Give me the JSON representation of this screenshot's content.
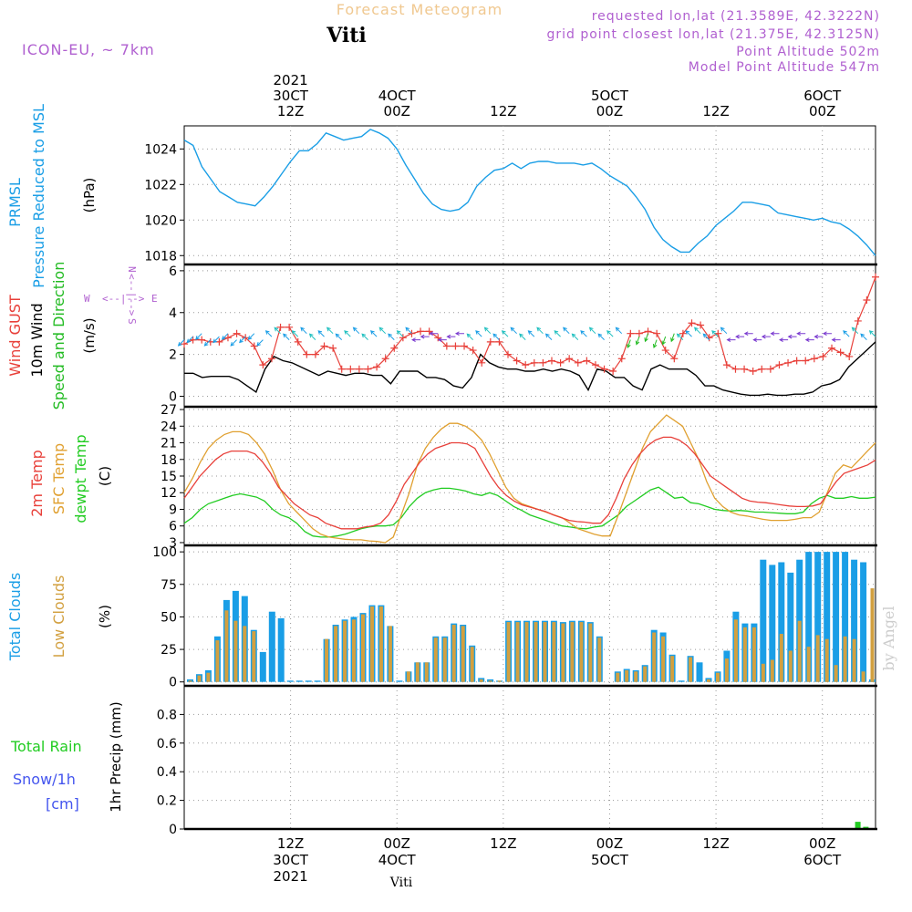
{
  "header": {
    "title": "Forecast Meteogram",
    "location": "Viti",
    "model": "ICON-EU, ~ 7km",
    "info_lines": [
      "requested lon,lat (21.3589E, 42.3222N)",
      "grid point closest lon,lat (21.375E, 42.3125N)",
      "Point Altitude 502m",
      "Model Point Altitude 547m"
    ],
    "footer_location": "Viti",
    "watermark": "by Angel"
  },
  "colors": {
    "pressure": "#1a9ee6",
    "gust": "#e8403a",
    "wind": "#000000",
    "wind_arrow": "#22bb22",
    "compass": "#b060d0",
    "t2m": "#e8403a",
    "sfc": "#e0a030",
    "dew": "#22cc22",
    "total_clouds": "#1a9ee6",
    "low_clouds": "#d2a040",
    "rain": "#22cc22",
    "snow": "#4455ee",
    "title": "#f0c890",
    "info": "#b060d0",
    "grid": "#999999"
  },
  "time_axis": {
    "top_labels": [
      {
        "t": 12,
        "lines": [
          "2021",
          "30CT",
          "12Z"
        ]
      },
      {
        "t": 24,
        "lines": [
          "4OCT",
          "00Z"
        ]
      },
      {
        "t": 36,
        "lines": [
          "12Z"
        ]
      },
      {
        "t": 48,
        "lines": [
          "5OCT",
          "00Z"
        ]
      },
      {
        "t": 60,
        "lines": [
          "12Z"
        ]
      },
      {
        "t": 72,
        "lines": [
          "6OCT",
          "00Z"
        ]
      }
    ],
    "bottom_labels": [
      {
        "t": 12,
        "lines": [
          "12Z",
          "30CT",
          "2021"
        ]
      },
      {
        "t": 24,
        "lines": [
          "00Z",
          "4OCT"
        ]
      },
      {
        "t": 36,
        "lines": [
          "12Z"
        ]
      },
      {
        "t": 48,
        "lines": [
          "00Z",
          "5OCT"
        ]
      },
      {
        "t": 60,
        "lines": [
          "12Z"
        ]
      },
      {
        "t": 72,
        "lines": [
          "00Z",
          "6OCT"
        ]
      }
    ]
  },
  "chart_data": [
    {
      "type": "line",
      "panel": "pressure",
      "title": "PRMSL Pressure Reduced to MSL",
      "ylabel": "(hPa)",
      "ylim": [
        1017.5,
        1025.3
      ],
      "yticks": [
        1018,
        1020,
        1022,
        1024
      ],
      "series": [
        {
          "name": "PRMSL",
          "values": [
            1024.5,
            1024.2,
            1023,
            1022.3,
            1021.6,
            1021.3,
            1021,
            1020.9,
            1020.8,
            1021.3,
            1021.9,
            1022.6,
            1023.3,
            1023.9,
            1023.9,
            1024.3,
            1024.9,
            1024.7,
            1024.5,
            1024.6,
            1024.7,
            1025.1,
            1024.9,
            1024.6,
            1024,
            1023.1,
            1022.3,
            1021.5,
            1020.9,
            1020.6,
            1020.5,
            1020.6,
            1021,
            1021.9,
            1022.4,
            1022.8,
            1022.9,
            1023.2,
            1022.9,
            1023.2,
            1023.3,
            1023.3,
            1023.2,
            1023.2,
            1023.2,
            1023.1,
            1023.2,
            1022.9,
            1022.5,
            1022.2,
            1021.9,
            1021.3,
            1020.6,
            1019.6,
            1018.9,
            1018.5,
            1018.2,
            1018.2,
            1018.7,
            1019.1,
            1019.7,
            1020.1,
            1020.5,
            1021,
            1021,
            1020.9,
            1020.8,
            1020.4,
            1020.3,
            1020.2,
            1020.1,
            1020,
            1020.1,
            1019.9,
            1019.8,
            1019.5,
            1019.1,
            1018.6,
            1018
          ]
        }
      ]
    },
    {
      "type": "line",
      "panel": "wind",
      "title": "Wind GUST / 10m Wind Speed and Direction",
      "ylabel": "(m/s)",
      "ylim": [
        -0.5,
        6.3
      ],
      "yticks": [
        0,
        2,
        4,
        6
      ],
      "compass": {
        "w": "W",
        "e": "E",
        "n": "N",
        "s": "S"
      },
      "series": [
        {
          "name": "Wind GUST",
          "values": [
            2.5,
            2.7,
            2.7,
            2.6,
            2.6,
            2.8,
            3.0,
            2.8,
            2.4,
            1.5,
            1.8,
            3.3,
            3.3,
            2.6,
            2.0,
            2.0,
            2.4,
            2.3,
            1.3,
            1.3,
            1.3,
            1.3,
            1.4,
            1.8,
            2.3,
            2.8,
            3.0,
            3.1,
            3.1,
            2.8,
            2.4,
            2.4,
            2.4,
            2.2,
            1.6,
            2.6,
            2.6,
            2.0,
            1.7,
            1.5,
            1.6,
            1.6,
            1.7,
            1.6,
            1.8,
            1.6,
            1.7,
            1.5,
            1.3,
            1.2,
            1.8,
            3.0,
            3.0,
            3.1,
            3.0,
            2.2,
            1.8,
            3.0,
            3.5,
            3.4,
            2.8,
            3.0,
            1.5,
            1.3,
            1.3,
            1.2,
            1.3,
            1.3,
            1.5,
            1.6,
            1.7,
            1.7,
            1.8,
            1.9,
            2.3,
            2.1,
            1.9,
            3.6,
            4.6,
            5.7
          ]
        },
        {
          "name": "10m Wind",
          "values": [
            1.1,
            1.1,
            0.9,
            0.95,
            0.95,
            0.95,
            0.8,
            0.5,
            0.2,
            1.3,
            1.9,
            1.7,
            1.6,
            1.4,
            1.2,
            1.0,
            1.2,
            1.1,
            1.0,
            1.1,
            1.1,
            1.0,
            1.0,
            0.6,
            1.2,
            1.2,
            1.2,
            0.9,
            0.9,
            0.8,
            0.5,
            0.4,
            0.9,
            2.0,
            1.6,
            1.4,
            1.3,
            1.3,
            1.2,
            1.2,
            1.3,
            1.2,
            1.3,
            1.2,
            1.0,
            0.3,
            1.3,
            1.2,
            0.9,
            0.9,
            0.5,
            0.3,
            1.3,
            1.5,
            1.3,
            1.3,
            1.3,
            1.0,
            0.5,
            0.5,
            0.3,
            0.2,
            0.1,
            0.05,
            0.05,
            0.1,
            0.05,
            0.05,
            0.1,
            0.1,
            0.2,
            0.5,
            0.6,
            0.8,
            1.4,
            1.8,
            2.2,
            2.6
          ]
        }
      ],
      "direction_deg": [
        225,
        225,
        225,
        225,
        225,
        225,
        225,
        225,
        225,
        225,
        315,
        315,
        315,
        315,
        315,
        315,
        315,
        315,
        315,
        315,
        315,
        315,
        315,
        315,
        315,
        315,
        315,
        270,
        270,
        270,
        270,
        270,
        270,
        315,
        315,
        315,
        315,
        315,
        315,
        315,
        315,
        315,
        315,
        315,
        315,
        315,
        315,
        315,
        315,
        315,
        315,
        200,
        200,
        200,
        200,
        200,
        200,
        315,
        315,
        315,
        315,
        315,
        315,
        270,
        270,
        270,
        270,
        270,
        270,
        270,
        270,
        270,
        270,
        270,
        270,
        270,
        315,
        315,
        315,
        315
      ]
    },
    {
      "type": "line",
      "panel": "temperature",
      "title": "2m Temp / SFC Temp / dewpt Temp",
      "ylabel": "(C)",
      "ylim": [
        2.5,
        27.5
      ],
      "yticks": [
        3,
        6,
        9,
        12,
        15,
        18,
        21,
        24,
        27
      ],
      "series": [
        {
          "name": "2m Temp",
          "values": [
            11,
            13,
            15,
            16.5,
            18,
            19,
            19.5,
            19.5,
            19.5,
            19,
            17.5,
            15.5,
            13,
            11.5,
            10,
            9,
            8,
            7.5,
            6.5,
            6,
            5.5,
            5.5,
            5.5,
            5.8,
            6,
            6.5,
            8,
            10.5,
            13.5,
            15.5,
            17.5,
            19,
            20,
            20.5,
            21,
            21,
            20.8,
            20,
            17.5,
            15,
            13,
            11.5,
            10.5,
            9.8,
            9.4,
            9,
            8.6,
            8,
            7.5,
            7,
            6.8,
            6.7,
            6.5,
            6.5,
            8,
            11,
            14.5,
            17,
            19,
            20.5,
            21.5,
            22,
            22,
            21.5,
            20.5,
            19,
            17,
            15,
            14,
            13,
            12,
            11,
            10.5,
            10.3,
            10.2,
            10,
            9.8,
            9.6,
            9.5,
            9.5,
            9.6,
            10,
            12,
            14,
            15.5,
            16,
            16.5,
            17,
            17.9
          ]
        },
        {
          "name": "SFC Temp",
          "values": [
            12,
            14.5,
            17.5,
            20,
            21.5,
            22.5,
            23,
            23,
            22.5,
            21,
            19,
            16,
            12.5,
            10,
            8.5,
            7,
            5.5,
            4.5,
            4,
            3.8,
            3.6,
            3.5,
            3.5,
            3.3,
            3.2,
            3.0,
            4,
            8,
            12,
            17,
            20,
            22,
            23.5,
            24.5,
            24.5,
            24,
            23,
            21.5,
            19,
            16,
            13,
            11,
            10,
            9.5,
            9,
            8.5,
            8,
            7.5,
            6.5,
            5.5,
            5,
            4.5,
            4.2,
            4.2,
            8,
            12,
            16,
            20,
            23,
            24.5,
            26,
            25,
            24,
            21,
            18,
            14,
            11,
            9.5,
            8.5,
            8,
            7.8,
            7.5,
            7.2,
            7,
            7,
            7,
            7.2,
            7.5,
            7.5,
            8.5,
            12,
            15.5,
            17,
            16.5,
            18,
            19.5,
            21
          ]
        },
        {
          "name": "dewpt Temp",
          "values": [
            6.5,
            7.5,
            9,
            10,
            10.5,
            11,
            11.5,
            11.8,
            11.5,
            11.2,
            10.5,
            9,
            8,
            7.5,
            6.5,
            5,
            4.2,
            4,
            4,
            4.2,
            4.5,
            5,
            5.5,
            5.8,
            6,
            6,
            6.2,
            7.5,
            9.5,
            11,
            12,
            12.5,
            12.8,
            12.8,
            12.6,
            12.3,
            11.8,
            11.5,
            12,
            11.5,
            10.5,
            9.5,
            8.8,
            8,
            7.5,
            7,
            6.5,
            6,
            5.8,
            5.6,
            5.5,
            5.8,
            6,
            7,
            8,
            9.5,
            10.5,
            11.5,
            12.5,
            13,
            12,
            11,
            11.2,
            10.2,
            10,
            9.5,
            9,
            8.8,
            8.7,
            8.8,
            8.7,
            8.5,
            8.5,
            8.4,
            8.3,
            8.2,
            8.2,
            8.5,
            10,
            11,
            11.5,
            11,
            11,
            11.3,
            11,
            11,
            11.2
          ]
        }
      ]
    },
    {
      "type": "bar",
      "panel": "clouds",
      "title": "Total Clouds / Low Clouds",
      "ylabel": "(%)",
      "ylim": [
        -3,
        105
      ],
      "yticks": [
        0,
        25,
        50,
        75,
        100
      ],
      "series": [
        {
          "name": "Total Clouds",
          "values": [
            2,
            6,
            9,
            35,
            63,
            70,
            66,
            40,
            23,
            54,
            49,
            1,
            1,
            1,
            1,
            33,
            44,
            48,
            50,
            53,
            59,
            59,
            43,
            1,
            8,
            15,
            15,
            35,
            35,
            45,
            44,
            28,
            3,
            2,
            1,
            47,
            47,
            47,
            47,
            47,
            47,
            46,
            47,
            47,
            46,
            35,
            0,
            8,
            10,
            9,
            13,
            40,
            38,
            21,
            1,
            20,
            15,
            3,
            8,
            24,
            54,
            45,
            45,
            94,
            90,
            92,
            84,
            94,
            100,
            100,
            100,
            100,
            100,
            94,
            92,
            2
          ]
        },
        {
          "name": "Low Clouds",
          "values": [
            1,
            5,
            7,
            32,
            55,
            47,
            43,
            39,
            0,
            0,
            0,
            0,
            0,
            0,
            0,
            33,
            43,
            47,
            48,
            52,
            58,
            58,
            43,
            0,
            8,
            15,
            15,
            34,
            34,
            44,
            43,
            27,
            2,
            1,
            1,
            46,
            46,
            46,
            46,
            46,
            46,
            45,
            46,
            46,
            45,
            34,
            0,
            7,
            9,
            8,
            12,
            38,
            35,
            20,
            0,
            19,
            0,
            2,
            7,
            18,
            48,
            42,
            42,
            14,
            17,
            37,
            24,
            47,
            27,
            36,
            33,
            13,
            35,
            33,
            8,
            72
          ]
        }
      ]
    },
    {
      "type": "bar",
      "panel": "precipitation",
      "title": "Total Rain / Snow/1h [cm]",
      "ylabel": "1hr Precip (mm)",
      "ylim": [
        0,
        1
      ],
      "yticks": [
        0,
        0.2,
        0.4,
        0.6,
        0.8
      ],
      "labels": {
        "rain": "Total  Rain",
        "snow": "Snow/1h",
        "snow_unit": "[cm]"
      },
      "series": [
        {
          "name": "Total Rain",
          "values": [
            0.05,
            0.015
          ]
        },
        {
          "name": "Snow",
          "values": [
            0,
            0
          ]
        }
      ]
    }
  ]
}
